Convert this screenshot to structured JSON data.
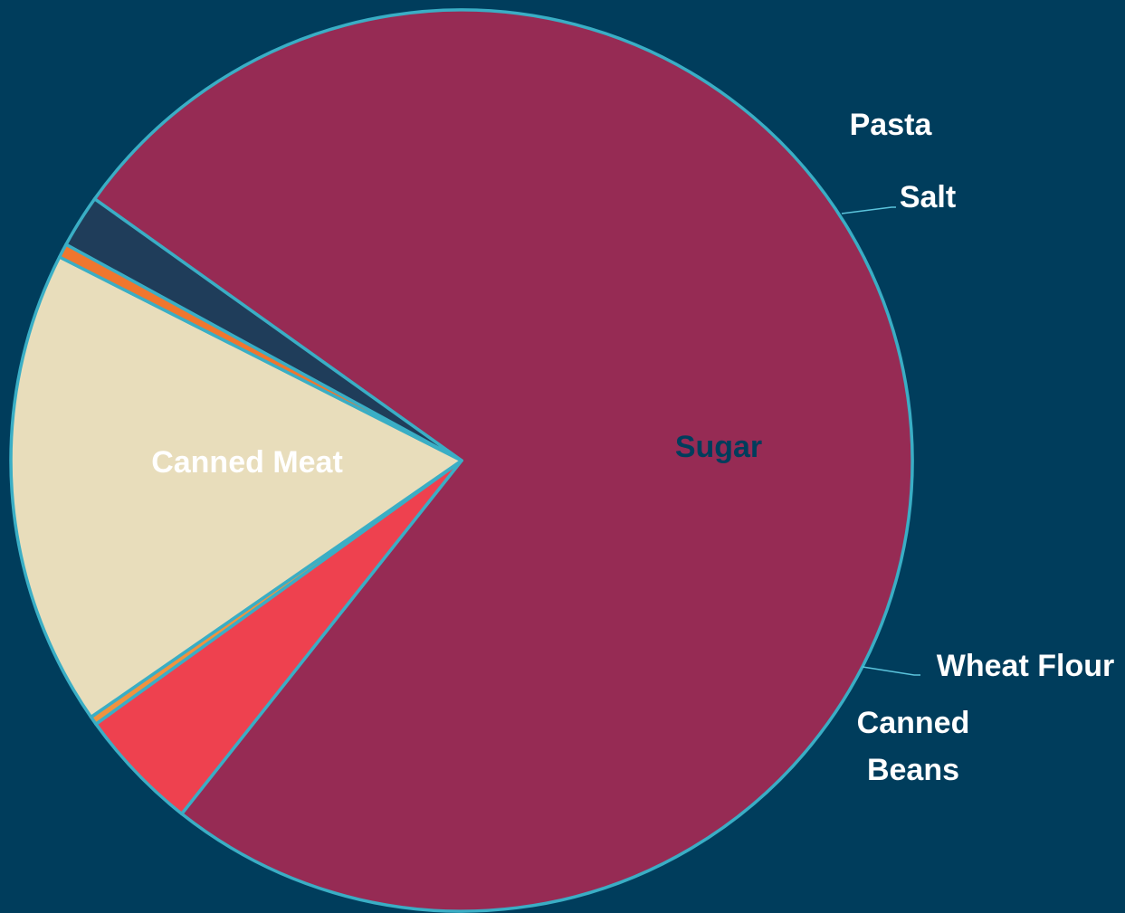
{
  "chart_data": {
    "type": "pie",
    "slices": [
      {
        "label": "Canned Meat",
        "value": 75.8,
        "color": "#962b54",
        "label_color": "#ffffff"
      },
      {
        "label": "Pasta",
        "value": 4.4,
        "color": "#ee414f",
        "label_color": "#ffffff"
      },
      {
        "label": "Salt",
        "value": 0.3,
        "color": "#f0923f",
        "label_color": "#ffffff"
      },
      {
        "label": "Sugar",
        "value": 17.1,
        "color": "#e8ddbb",
        "label_color": "#003d5c"
      },
      {
        "label": "Wheat Flour",
        "value": 0.5,
        "color": "#f0762e",
        "label_color": "#ffffff"
      },
      {
        "label": "Canned Beans",
        "value": 1.9,
        "color": "#1f3d5a",
        "label_color": "#ffffff"
      }
    ],
    "start_slice": "Canned Meat",
    "start_angle_deg": 215.5,
    "border_color": "#3aaec5",
    "background": "#003d5c"
  }
}
